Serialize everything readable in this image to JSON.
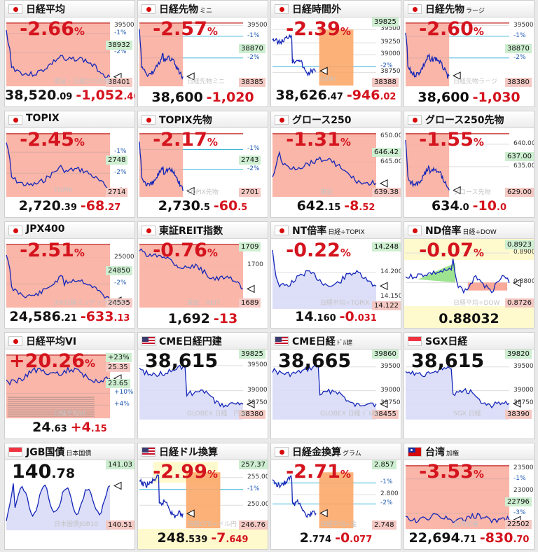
{
  "tiles": [
    {
      "title": "日経平均",
      "sub": "",
      "flag": "jp",
      "chg": "-2.66",
      "unit": "%",
      "price_int": "38,520",
      "price_dec": ".09",
      "diff_int": "-1,052",
      "diff_dec": ".40",
      "ticks": [
        {
          "t": "39500",
          "y": 0.06
        },
        {
          "t": "-1%",
          "y": 0.18,
          "pct": 1
        },
        {
          "t": "-2%",
          "y": 0.47,
          "pct": 1
        }
      ],
      "badges": [
        {
          "t": "38932",
          "c": "green",
          "y": 0.35
        },
        {
          "t": "38401",
          "c": "red",
          "y": 0.92
        }
      ],
      "wm": "東証・日経225先物",
      "shape": "drop",
      "style": "bar"
    },
    {
      "title": "日経先物",
      "sub": "ミニ",
      "flag": "jp",
      "chg": "-2.57",
      "unit": "%",
      "price_int": "38,600",
      "price_dec": "",
      "diff_int": "-1,020",
      "diff_dec": "",
      "ticks": [
        {
          "t": "39500",
          "y": 0.06
        },
        {
          "t": "-1%",
          "y": 0.22,
          "pct": 1
        },
        {
          "t": "-2%",
          "y": 0.55,
          "pct": 1
        }
      ],
      "badges": [
        {
          "t": "38870",
          "c": "green",
          "y": 0.4
        },
        {
          "t": "38385",
          "c": "red",
          "y": 0.92
        }
      ],
      "wm": "日経先物ミニ",
      "shape": "drop",
      "style": "short"
    },
    {
      "title": "日経時間外",
      "sub": "",
      "flag": "jp",
      "chg": "-2.39",
      "unit": "%",
      "price_int": "38,626",
      "price_dec": ".47",
      "diff_int": "-946",
      "diff_dec": ".02",
      "ticks": [
        {
          "t": "39500",
          "y": 0.12
        },
        {
          "t": "39250",
          "y": 0.32
        },
        {
          "t": "39000",
          "y": 0.5
        },
        {
          "t": "-2%",
          "y": 0.68,
          "pct": 1
        },
        {
          "t": "38750",
          "y": 0.77
        }
      ],
      "badges": [
        {
          "t": "39825",
          "c": "green",
          "y": 0.0
        },
        {
          "t": "38388",
          "c": "red",
          "y": 0.92
        }
      ],
      "wm": "DERI",
      "shape": "cme",
      "style": "night"
    },
    {
      "title": "日経先物",
      "sub": "ラージ",
      "flag": "jp",
      "chg": "-2.60",
      "unit": "%",
      "price_int": "38,600",
      "price_dec": "",
      "diff_int": "-1,030",
      "diff_dec": "",
      "ticks": [
        {
          "t": "39500",
          "y": 0.06
        },
        {
          "t": "-1%",
          "y": 0.22,
          "pct": 1
        },
        {
          "t": "-2%",
          "y": 0.55,
          "pct": 1
        }
      ],
      "badges": [
        {
          "t": "38870",
          "c": "green",
          "y": 0.4
        },
        {
          "t": "38380",
          "c": "red",
          "y": 0.92
        }
      ],
      "wm": "日経先物ラージ",
      "shape": "drop",
      "style": "short"
    },
    {
      "title": "TOPIX",
      "sub": "",
      "flag": "jp",
      "chg": "-2.45",
      "unit": "%",
      "price_int": "2,720",
      "price_dec": ".39",
      "diff_int": "-68",
      "diff_dec": ".27",
      "ticks": [
        {
          "t": "-1%",
          "y": 0.3,
          "pct": 1
        },
        {
          "t": "-2%",
          "y": 0.62,
          "pct": 1
        }
      ],
      "badges": [
        {
          "t": "2748",
          "c": "green",
          "y": 0.42
        },
        {
          "t": "2714",
          "c": "red",
          "y": 0.9
        }
      ],
      "wm": "TOPIX",
      "shape": "drop",
      "style": "bar"
    },
    {
      "title": "TOPIX先物",
      "sub": "",
      "flag": "jp",
      "chg": "-2.17",
      "unit": "%",
      "price_int": "2,730",
      "price_dec": ".5",
      "diff_int": "-60",
      "diff_dec": ".5",
      "ticks": [
        {
          "t": "-1%",
          "y": 0.26,
          "pct": 1
        },
        {
          "t": "-2%",
          "y": 0.56,
          "pct": 1
        }
      ],
      "badges": [
        {
          "t": "2743",
          "c": "green",
          "y": 0.42
        },
        {
          "t": "2701",
          "c": "red",
          "y": 0.9
        }
      ],
      "wm": "TOPIX先物",
      "shape": "drop",
      "style": "short"
    },
    {
      "title": "グロース250",
      "sub": "",
      "flag": "jp",
      "chg": "-1.31",
      "unit": "%",
      "price_int": "642",
      "price_dec": ".15",
      "diff_int": "-8",
      "diff_dec": ".52",
      "ticks": [
        {
          "t": "650.00",
          "y": 0.06
        },
        {
          "t": "645.00",
          "y": 0.46
        }
      ],
      "badges": [
        {
          "t": "646.42",
          "c": "green",
          "y": 0.3
        },
        {
          "t": "639.38",
          "c": "red",
          "y": 0.9
        }
      ],
      "wm": "東証",
      "shape": "bump",
      "style": "bar"
    },
    {
      "title": "グロース250先物",
      "sub": "",
      "flag": "jp",
      "chg": "-1.55",
      "unit": "%",
      "price_int": "634",
      "price_dec": ".0",
      "diff_int": "-10",
      "diff_dec": ".0",
      "ticks": [
        {
          "t": "640.00",
          "y": 0.18
        },
        {
          "t": "635.00",
          "y": 0.52
        }
      ],
      "badges": [
        {
          "t": "637.00",
          "c": "green",
          "y": 0.36
        },
        {
          "t": "629.00",
          "c": "red",
          "y": 0.9
        }
      ],
      "wm": "グロース先物",
      "shape": "drop",
      "style": "short"
    },
    {
      "title": "JPX400",
      "sub": "",
      "flag": "jp",
      "chg": "-2.51",
      "unit": "%",
      "price_int": "24,586",
      "price_dec": ".21",
      "diff_int": "-633",
      "diff_dec": ".13",
      "ticks": [
        {
          "t": "25000",
          "y": 0.22
        },
        {
          "t": "-2%",
          "y": 0.62,
          "pct": 1
        }
      ],
      "badges": [
        {
          "t": "24850",
          "c": "green",
          "y": 0.42
        },
        {
          "t": "24535",
          "c": "red",
          "y": 0.9
        }
      ],
      "wm": "JPX日経インデックス400",
      "shape": "drop",
      "style": "bar"
    },
    {
      "title": "東証REIT指数",
      "sub": "",
      "flag": "jp",
      "chg": "-0.76",
      "unit": "%",
      "price_int": "1,692",
      "price_dec": "",
      "diff_int": "-13",
      "diff_dec": "",
      "ticks": [
        {
          "t": "1700",
          "y": 0.34
        }
      ],
      "badges": [
        {
          "t": "1709",
          "c": "green",
          "y": 0.05
        },
        {
          "t": "1689",
          "c": "red",
          "y": 0.9
        }
      ],
      "wm": "東証　REIT",
      "shape": "reit",
      "style": "bar"
    },
    {
      "title": "NT倍率",
      "sub": "日経÷TOPIX",
      "flag": "jp",
      "chg": "-0.22",
      "unit": "%",
      "price_int": "14",
      "price_dec": ".160",
      "diff_int": "-0",
      "diff_dec": ".031",
      "ticks": [
        {
          "t": "14.200",
          "y": 0.45
        },
        {
          "t": "14.150",
          "y": 0.82
        }
      ],
      "badges": [
        {
          "t": "14.248",
          "c": "green",
          "y": 0.05
        },
        {
          "t": "14.122",
          "c": "red",
          "y": 0.95
        }
      ],
      "wm": "日経平均÷TOPIX",
      "shape": "nt",
      "style": "nt"
    },
    {
      "title": "ND倍率",
      "sub": "日経÷DOW",
      "flag": "jp",
      "chg": "-0.07",
      "unit": "%",
      "price_int": "0.88032",
      "price_dec": "",
      "diff_int": "",
      "diff_dec": "",
      "ticks": [
        {
          "t": "0.8900",
          "y": 0.15
        },
        {
          "t": "0.8800",
          "y": 0.6
        }
      ],
      "badges": [
        {
          "t": "0.8923",
          "c": "green",
          "y": 0.02
        },
        {
          "t": "0.8726",
          "c": "red",
          "y": 0.9
        }
      ],
      "wm": "日経平均÷DOW",
      "shape": "nd",
      "style": "nd"
    },
    {
      "title": "日経平均VI",
      "sub": "",
      "flag": "jp",
      "chg": "+20.26",
      "unit": "%",
      "price_int": "24",
      "price_dec": ".63",
      "diff_int": "+4",
      "diff_dec": ".15",
      "ticks": [
        {
          "t": "+10%",
          "y": 0.6,
          "pct": 1
        },
        {
          "t": "+4%",
          "y": 0.78,
          "pct": 1
        }
      ],
      "badges": [
        {
          "t": "25.35",
          "c": "red",
          "y": 0.2
        },
        {
          "t": "23.65",
          "c": "green",
          "y": 0.45
        },
        {
          "t": "+23%",
          "c": "green",
          "y": 0.05
        }
      ],
      "wm": "日経平均VI",
      "shape": "vi",
      "style": "vi"
    },
    {
      "title": "CME日経円建",
      "sub": "",
      "flag": "us",
      "big_int": "38,615",
      "big_dec": "",
      "ticks": [
        {
          "t": "39500",
          "y": 0.18
        },
        {
          "t": "39000",
          "y": 0.56
        },
        {
          "t": "38750",
          "y": 0.75
        }
      ],
      "badges": [
        {
          "t": "39825",
          "c": "green",
          "y": 0.0
        },
        {
          "t": "38380",
          "c": "red",
          "y": 0.92
        }
      ],
      "wm": "GLOBEX 日経　円建",
      "shape": "cme",
      "style": "cme"
    },
    {
      "title": "CME日経",
      "sub": "ﾄﾞﾙ建",
      "flag": "us",
      "big_int": "38,665",
      "big_dec": "",
      "ticks": [
        {
          "t": "39500",
          "y": 0.2
        },
        {
          "t": "39000",
          "y": 0.56
        },
        {
          "t": "38750",
          "y": 0.75
        }
      ],
      "badges": [
        {
          "t": "39860",
          "c": "green",
          "y": 0.0
        },
        {
          "t": "38455",
          "c": "red",
          "y": 0.92
        }
      ],
      "wm": "GLOBEX 日経 ﾄﾞﾙ建",
      "shape": "cme",
      "style": "cme"
    },
    {
      "title": "SGX日経",
      "sub": "",
      "flag": "sg",
      "big_int": "38,615",
      "big_dec": "",
      "ticks": [
        {
          "t": "39500",
          "y": 0.2
        },
        {
          "t": "39000",
          "y": 0.56
        },
        {
          "t": "38750",
          "y": 0.75
        }
      ],
      "badges": [
        {
          "t": "39820",
          "c": "green",
          "y": 0.0
        },
        {
          "t": "38390",
          "c": "red",
          "y": 0.92
        }
      ],
      "wm": "SGX 日経",
      "shape": "cme",
      "style": "cme"
    },
    {
      "title": "JGB国債",
      "sub": "日本国債",
      "flag": "sg",
      "big_int": "140",
      "big_dec": ".78",
      "ticks": [],
      "badges": [
        {
          "t": "141.03",
          "c": "green",
          "y": 0.0
        },
        {
          "t": "140.51",
          "c": "red",
          "y": 0.92
        }
      ],
      "wm": "日本国債JGB10",
      "shape": "jgb",
      "style": "jgb"
    },
    {
      "title": "日経ドル換算",
      "sub": "",
      "flag": "us",
      "chg": "-2.99",
      "unit": "%",
      "price_int": "248",
      "price_dec": ".539",
      "diff_int": "-7",
      "diff_dec": ".649",
      "ticks": [
        {
          "t": "255.00",
          "y": 0.2
        },
        {
          "t": "-1%",
          "y": 0.38,
          "pct": 1
        },
        {
          "t": "250.00",
          "y": 0.62
        }
      ],
      "badges": [
        {
          "t": "257.37",
          "c": "green",
          "y": 0.0
        },
        {
          "t": "246.76",
          "c": "red",
          "y": 0.92
        }
      ],
      "wm": "日経CFD÷ドル円",
      "shape": "cme",
      "style": "night"
    },
    {
      "title": "日経金換算",
      "sub": "グラム",
      "flag": "jp",
      "chg": "-2.71",
      "unit": "%",
      "price_int": "2",
      "price_dec": ".774",
      "diff_int": "-0",
      "diff_dec": ".077",
      "ticks": [
        {
          "t": "-1%",
          "y": 0.28,
          "pct": 1
        },
        {
          "t": "2.800",
          "y": 0.46
        },
        {
          "t": "-2%",
          "y": 0.6,
          "pct": 1
        }
      ],
      "badges": [
        {
          "t": "2.857",
          "c": "green",
          "y": 0.0
        },
        {
          "t": "2.748",
          "c": "red",
          "y": 0.92
        }
      ],
      "wm": "日経平均÷金",
      "shape": "cme",
      "style": "night"
    },
    {
      "title": "台湾",
      "sub": "加権",
      "flag": "tw",
      "chg": "-3.53",
      "unit": "%",
      "price_int": "22,694",
      "price_dec": ".71",
      "diff_int": "-830",
      "diff_dec": ".70",
      "ticks": [
        {
          "t": "23500",
          "y": 0.06
        },
        {
          "t": "-1%",
          "y": 0.22,
          "pct": 1
        },
        {
          "t": "23000",
          "y": 0.4
        },
        {
          "t": "-3%",
          "y": 0.74,
          "pct": 1
        }
      ],
      "badges": [
        {
          "t": "22796",
          "c": "green",
          "y": 0.56
        },
        {
          "t": "22502",
          "c": "red",
          "y": 0.9
        }
      ],
      "wm": "台湾加権",
      "shape": "tw",
      "style": "bar"
    }
  ]
}
